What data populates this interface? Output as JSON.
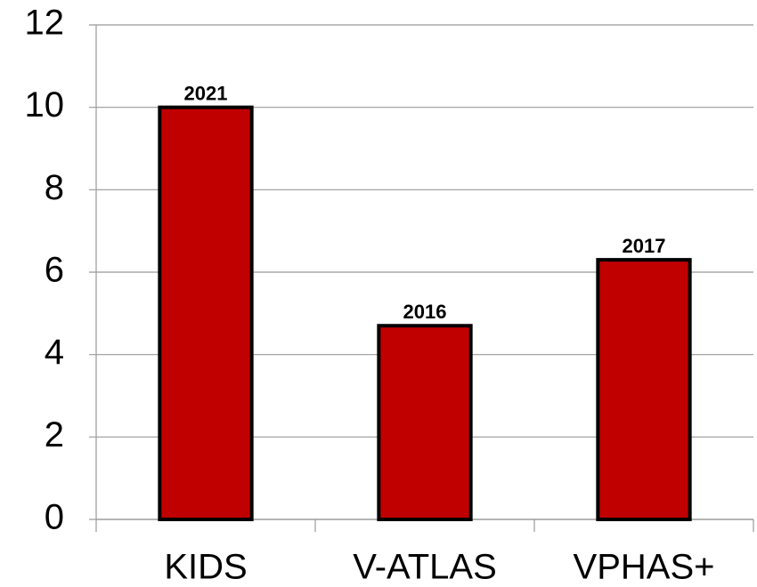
{
  "chart_data": {
    "type": "bar",
    "categories": [
      "KIDS",
      "V-ATLAS",
      "VPHAS+"
    ],
    "values": [
      10,
      4.7,
      6.3
    ],
    "bar_labels": [
      "2021",
      "2016",
      "2017"
    ],
    "color": "#c00000",
    "ylim": [
      0,
      12
    ],
    "yticks": [
      0,
      2,
      4,
      6,
      8,
      10,
      12
    ],
    "grid": true
  }
}
